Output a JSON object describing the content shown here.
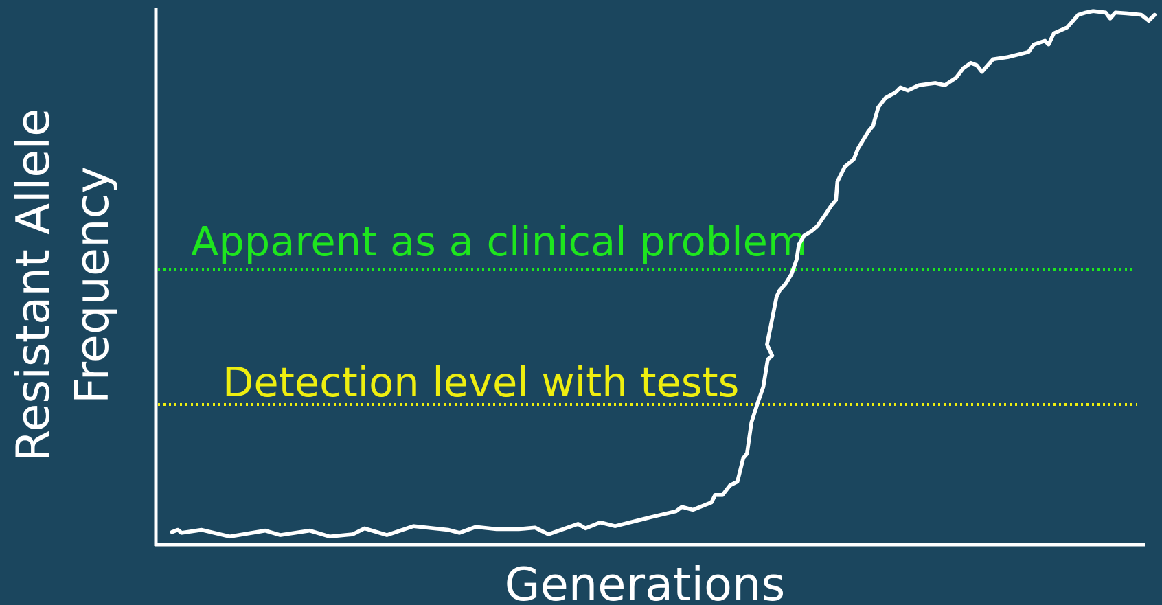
{
  "y_axis_label": [
    "Resistant Allele",
    "Frequency"
  ],
  "x_axis_label": "Generations",
  "thresholds": [
    {
      "label": "Apparent as a clinical problem",
      "color": "#1ee61e"
    },
    {
      "label": "Detection level with tests",
      "color": "#eeee10"
    }
  ]
}
